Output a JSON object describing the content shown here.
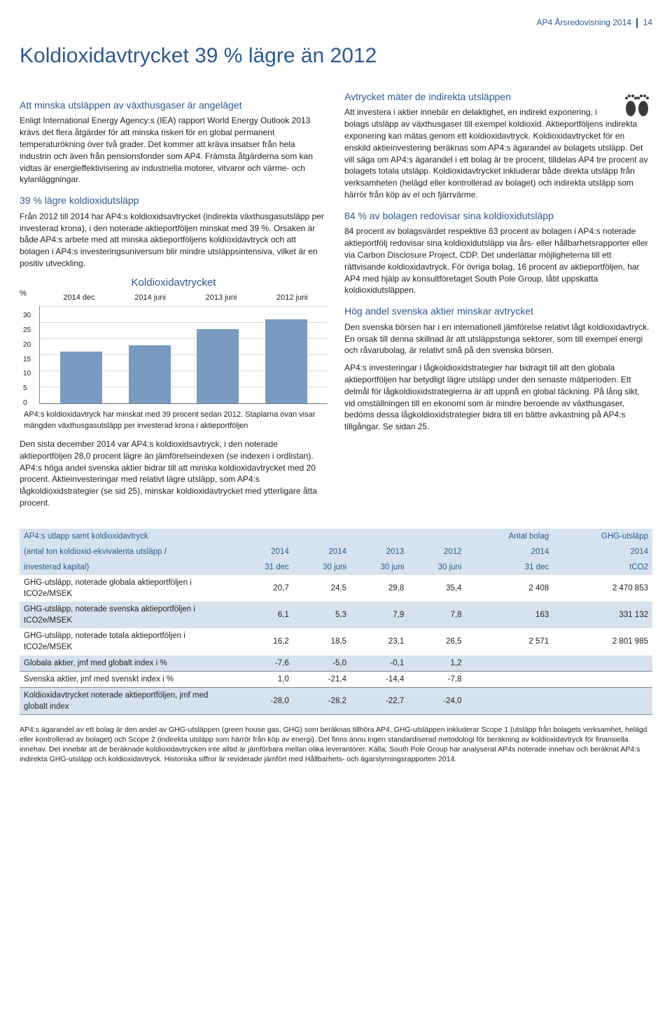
{
  "header": {
    "text": "AP4 Årsredovisning 2014",
    "page": "14"
  },
  "title": "Koldioxidavtrycket 39 % lägre än 2012",
  "left": {
    "lead_h": "Att minska utsläppen av växthusgaser är angeläget",
    "lead": "Enligt International Energy Agency:s (IEA) rapport World Energy Outlook 2013 krävs det flera åtgärder för att minska risken för en global permanent temperaturökning över två grader. Det kommer att kräva insatser från hela industrin och även från pensionsfonder som AP4. Främsta åtgärderna som kan vidtas är energieffektivisering av industriella motorer, vitvaror och värme- och kylanläggningar.",
    "sec1_h": "39 % lägre koldioxidutsläpp",
    "sec1_p": "Från 2012 till 2014 har AP4:s koldioxidsavtrycket (indirekta växthusgasutsläpp per investerad krona), i den noterade aktieportföljen minskat med 39 %. Orsaken är både AP4:s arbete med att minska aktieportföljens koldioxidavtryck och att bolagen i AP4:s investeringsuniversum blir mindre utsläppsintensiva, vilket är en positiv utveckling.",
    "chart": {
      "title": "Koldioxidavtrycket",
      "type": "bar",
      "y_unit": "%",
      "categories": [
        "2014 dec",
        "2014 juni",
        "2013 juni",
        "2012 juni"
      ],
      "values": [
        16,
        18,
        23,
        26
      ],
      "ylim": [
        0,
        30
      ],
      "ytick_step": 5,
      "bar_color": "#7a9bc0",
      "grid_color": "#dddddd",
      "caption": "AP4:s koldioxidavtryck har minskat med 39 procent sedan 2012. Staplarna ovan visar mängden växthusgasutsläpp per investerad krona i aktieportföljen"
    },
    "sec2_p": "Den sista december 2014 var AP4:s koldioxidsavtryck, i den noterade aktieportföljen 28,0 procent lägre än jämförelseindexen (se indexen i ordlistan). AP4:s höga andel svenska aktier bidrar till att minska koldioxidavtrycket med 20 procent. Aktieinvesteringar med relativt lägre utsläpp, som AP4:s lågkoldioxidstrategier (se sid 25), minskar koldioxidavtrycket med ytterligare åtta procent."
  },
  "right": {
    "sec1_h": "Avtrycket mäter de indirekta utsläppen",
    "sec1_p": "Att investera i aktier innebär en delaktighet, en indirekt exponering, i bolags utsläpp av växthusgaser till exempel koldioxid. Aktieportföljens indirekta exponering kan mätas genom ett koldioxidavtryck. Koldioxidavtrycket för en enskild aktieinvestering beräknas som AP4:s ägarandel av bolagets utsläpp. Det vill säga om AP4:s ägarandel i ett bolag är tre procent, tilldelas AP4 tre procent av bolagets totala utsläpp. Koldioxidavtrycket inkluderar både direkta utsläpp från verksamheten (helägd eller kontrollerad av bolaget) och indirekta utsläpp som härrör från köp av el och fjärrvärme.",
    "sec2_h": "84 % av bolagen redovisar sina koldioxidutsläpp",
    "sec2_p": "84 procent av bolagsvärdet respektive 63 procent av bolagen i AP4:s noterade aktieportfölj redovisar sina koldioxidutsläpp via års- eller hållbarhetsrapporter eller via Carbon Disclosure Project, CDP. Det underlättar möjligheterna till ett rättvisande koldioxidavtryck. För övriga bolag, 16 procent av aktieportföljen, har AP4 med hjälp av konsultföretaget South Pole Group, låtit uppskatta koldioxidutsläppen.",
    "sec3_h": "Hög andel svenska aktier minskar avtrycket",
    "sec3_p1": "Den svenska börsen har i en internationell jämförelse relativt lågt koldioxidavtryck. En orsak till denna skillnad är att utsläppstunga sektorer, som till exempel energi och råvarubolag, är relativt små på den svenska börsen.",
    "sec3_p2": "AP4:s investeringar i lågkoldioxidstrategier har bidragit till att den globala aktieportföljen har betydligt lägre utsläpp under den senaste mätperioden. Ett delmål för lågkoldioxidstrategierna är att uppnå en global täckning. På lång sikt, vid omställningen till en ekonomi som är mindre beroende av växthusgaser, bedöms dessa lågkoldioxidstrategier bidra till en bättre avkastning på AP4:s tillgångar. Se sidan 25."
  },
  "table": {
    "head_row1": [
      "AP4:s utlapp samt koldioxidavtryck",
      "",
      "",
      "",
      "",
      "Antal bolag",
      "GHG-utsläpp"
    ],
    "head_row2": [
      "(antal ton koldioxid-ekvivalenta utsläpp /",
      "2014",
      "2014",
      "2013",
      "2012",
      "2014",
      "2014"
    ],
    "head_row3": [
      "investerad kapital)",
      "31 dec",
      "30 juni",
      "30 juni",
      "30 juni",
      "31 dec",
      "tCO2"
    ],
    "rows": [
      {
        "label": "GHG-utsläpp, noterade globala aktieportföljen i tCO2e/MSEK",
        "vals": [
          "20,7",
          "24,5",
          "29,8",
          "35,4",
          "2 408",
          "2 470 853"
        ],
        "band": false
      },
      {
        "label": "GHG-utsläpp, noterade svenska aktieportföljen i tCO2e/MSEK",
        "vals": [
          "6,1",
          "5,3",
          "7,9",
          "7,8",
          "163",
          "331 132"
        ],
        "band": true
      },
      {
        "label": "GHG-utsläpp, noterade totala aktieportföljen i tCO2e/MSEK",
        "vals": [
          "16,2",
          "18,5",
          "23,1",
          "26,5",
          "2 571",
          "2 801 985"
        ],
        "band": false
      },
      {
        "label": "Globala aktier, jmf med globalt index i %",
        "vals": [
          "-7,6",
          "-5,0",
          "-0,1",
          "1,2",
          "",
          ""
        ],
        "band": true
      },
      {
        "label": "Svenska aktier, jmf med svenskt index i %",
        "vals": [
          "1,0",
          "-21,4",
          "-14,4",
          "-7,8",
          "",
          ""
        ],
        "band": false,
        "border_top": true
      },
      {
        "label": "Koldioxidavtrycket noterade aktieportföljen, jmf med globalt index",
        "vals": [
          "-28,0",
          "-28,2",
          "-22,7",
          "-24,0",
          "",
          ""
        ],
        "band": true,
        "border_top": true,
        "border_bottom": true
      }
    ]
  },
  "footnote": "AP4:s ägarandel av ett bolag är den andel av GHG-utsläppen (green house gas, GHG) som beräknas tillhöra AP4. GHG-utsläppen inkluderar Scope 1 (utsläpp från bolagets verksamhet, helägd eller kontrollerad av bolaget) och Scope 2 (indirekta utsläpp som härrör från köp av energi). Det finns ännu ingen standardiserad metodologi för beräkning av koldioxidavtryck för finansiella innehav. Det innebär att de beräknade koldioxidavtrycken inte alltid är jämförbara mellan olika leverantörer. Källa: South Pole Group har analyserat AP4s noterade innehav och beräknat AP4:s indirekta GHG-utsläpp och koldioxidavtryck. Historiska siffror är reviderade jämfört med Hållbarhets- och ägarstyrningsrapporten 2014."
}
